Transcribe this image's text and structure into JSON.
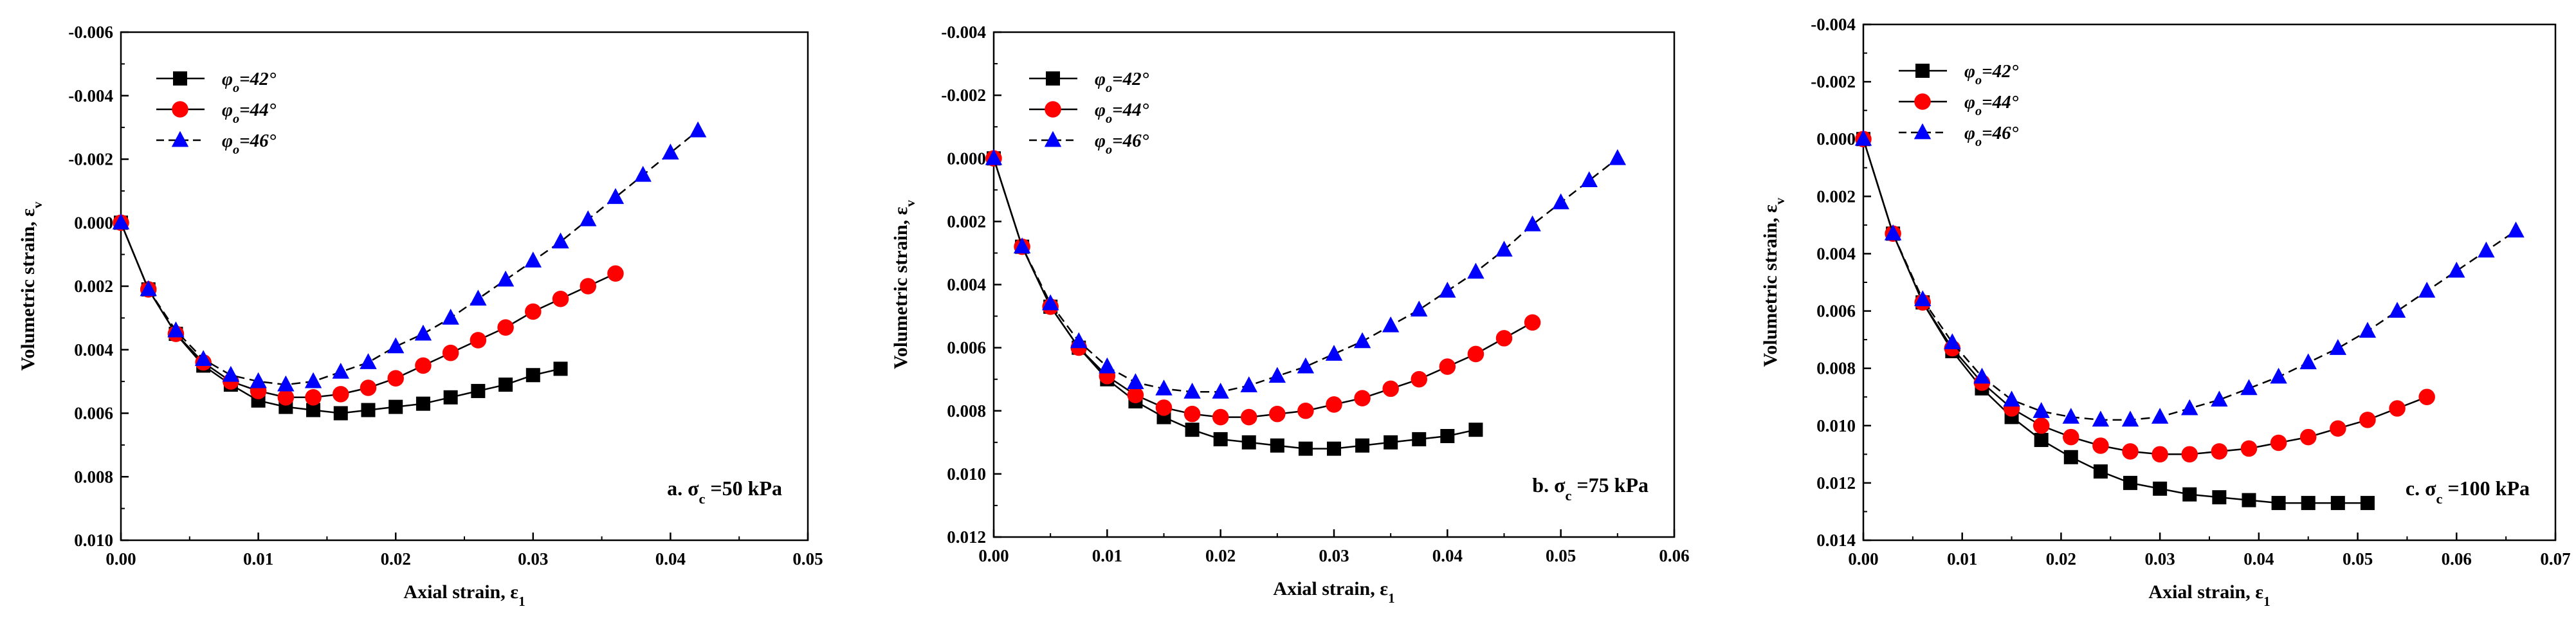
{
  "figure": {
    "colors": {
      "series1": "#000000",
      "series2": "#ff0000",
      "series3": "#0000ff",
      "axis": "#000000",
      "background": "#ffffff"
    },
    "legend_position": "top-left",
    "panel_label_position": "bottom-right"
  },
  "chart_data": [
    {
      "type": "line",
      "panel_label": "a. σc =50 kPa",
      "xlabel": "Axial strain, ε1",
      "ylabel": "Volumetric strain, εv",
      "y_inverted": true,
      "xlim": [
        0,
        0.05
      ],
      "ylim": [
        -0.006,
        0.01
      ],
      "xticks": [
        0.0,
        0.01,
        0.02,
        0.03,
        0.04,
        0.05
      ],
      "xtick_labels": [
        "0.00",
        "0.01",
        "0.02",
        "0.03",
        "0.04",
        "0.05"
      ],
      "yticks": [
        -0.006,
        -0.004,
        -0.002,
        0.0,
        0.002,
        0.004,
        0.006,
        0.008,
        0.01
      ],
      "ytick_labels": [
        "-0.006",
        "-0.004",
        "-0.002",
        "0.000",
        "0.002",
        "0.004",
        "0.006",
        "0.008",
        "0.010"
      ],
      "series": [
        {
          "name": "φ0=42°",
          "marker": "square",
          "color": "#000000",
          "dash": "solid",
          "x": [
            0.0,
            0.002,
            0.004,
            0.006,
            0.008,
            0.01,
            0.012,
            0.014,
            0.016,
            0.018,
            0.02,
            0.022,
            0.024,
            0.026,
            0.028,
            0.03,
            0.032
          ],
          "y": [
            0.0,
            0.0021,
            0.0035,
            0.0045,
            0.0051,
            0.0056,
            0.0058,
            0.0059,
            0.006,
            0.0059,
            0.0058,
            0.0057,
            0.0055,
            0.0053,
            0.0051,
            0.0048,
            0.0046
          ]
        },
        {
          "name": "φ0=44°",
          "marker": "circle",
          "color": "#ff0000",
          "dash": "solid",
          "x": [
            0.0,
            0.002,
            0.004,
            0.006,
            0.008,
            0.01,
            0.012,
            0.014,
            0.016,
            0.018,
            0.02,
            0.022,
            0.024,
            0.026,
            0.028,
            0.03,
            0.032,
            0.034,
            0.036
          ],
          "y": [
            0.0,
            0.0021,
            0.0035,
            0.0044,
            0.005,
            0.0053,
            0.0055,
            0.0055,
            0.0054,
            0.0052,
            0.0049,
            0.0045,
            0.0041,
            0.0037,
            0.0033,
            0.0028,
            0.0024,
            0.002,
            0.0016
          ]
        },
        {
          "name": "φ0=46°",
          "marker": "triangle",
          "color": "#0000ff",
          "dash": "dashed",
          "x": [
            0.0,
            0.002,
            0.004,
            0.006,
            0.008,
            0.01,
            0.012,
            0.014,
            0.016,
            0.018,
            0.02,
            0.022,
            0.024,
            0.026,
            0.028,
            0.03,
            0.032,
            0.034,
            0.036,
            0.038,
            0.04,
            0.042
          ],
          "y": [
            0.0,
            0.0021,
            0.0034,
            0.0043,
            0.0048,
            0.005,
            0.0051,
            0.005,
            0.0047,
            0.0044,
            0.0039,
            0.0035,
            0.003,
            0.0024,
            0.0018,
            0.0012,
            0.0006,
            -0.0001,
            -0.0008,
            -0.0015,
            -0.0022,
            -0.0029
          ]
        }
      ]
    },
    {
      "type": "line",
      "panel_label": "b. σc =75 kPa",
      "xlabel": "Axial strain, ε1",
      "ylabel": "Volumetric strain, εv",
      "y_inverted": true,
      "xlim": [
        0,
        0.06
      ],
      "ylim": [
        -0.004,
        0.012
      ],
      "xticks": [
        0.0,
        0.01,
        0.02,
        0.03,
        0.04,
        0.05,
        0.06
      ],
      "xtick_labels": [
        "0.00",
        "0.01",
        "0.02",
        "0.03",
        "0.04",
        "0.05",
        "0.06"
      ],
      "yticks": [
        -0.004,
        -0.002,
        0.0,
        0.002,
        0.004,
        0.006,
        0.008,
        0.01,
        0.012
      ],
      "ytick_labels": [
        "-0.004",
        "-0.002",
        "0.000",
        "0.002",
        "0.004",
        "0.006",
        "0.008",
        "0.010",
        "0.012"
      ],
      "series": [
        {
          "name": "φ0=42°",
          "marker": "square",
          "color": "#000000",
          "dash": "solid",
          "x": [
            0.0,
            0.0025,
            0.005,
            0.0075,
            0.01,
            0.0125,
            0.015,
            0.0175,
            0.02,
            0.0225,
            0.025,
            0.0275,
            0.03,
            0.0325,
            0.035,
            0.0375,
            0.04,
            0.0425
          ],
          "y": [
            0.0,
            0.0028,
            0.0047,
            0.006,
            0.007,
            0.0077,
            0.0082,
            0.0086,
            0.0089,
            0.009,
            0.0091,
            0.0092,
            0.0092,
            0.0091,
            0.009,
            0.0089,
            0.0088,
            0.0086
          ]
        },
        {
          "name": "φ0=44°",
          "marker": "circle",
          "color": "#ff0000",
          "dash": "solid",
          "x": [
            0.0,
            0.0025,
            0.005,
            0.0075,
            0.01,
            0.0125,
            0.015,
            0.0175,
            0.02,
            0.0225,
            0.025,
            0.0275,
            0.03,
            0.0325,
            0.035,
            0.0375,
            0.04,
            0.0425,
            0.045,
            0.0475
          ],
          "y": [
            0.0,
            0.0028,
            0.0047,
            0.006,
            0.0069,
            0.0075,
            0.0079,
            0.0081,
            0.0082,
            0.0082,
            0.0081,
            0.008,
            0.0078,
            0.0076,
            0.0073,
            0.007,
            0.0066,
            0.0062,
            0.0057,
            0.0052
          ]
        },
        {
          "name": "φ0=46°",
          "marker": "triangle",
          "color": "#0000ff",
          "dash": "dashed",
          "x": [
            0.0,
            0.0025,
            0.005,
            0.0075,
            0.01,
            0.0125,
            0.015,
            0.0175,
            0.02,
            0.0225,
            0.025,
            0.0275,
            0.03,
            0.0325,
            0.035,
            0.0375,
            0.04,
            0.0425,
            0.045,
            0.0475,
            0.05,
            0.0525,
            0.055
          ],
          "y": [
            0.0,
            0.0028,
            0.0046,
            0.0058,
            0.0066,
            0.0071,
            0.0073,
            0.0074,
            0.0074,
            0.0072,
            0.0069,
            0.0066,
            0.0062,
            0.0058,
            0.0053,
            0.0048,
            0.0042,
            0.0036,
            0.0029,
            0.0021,
            0.0014,
            0.0007,
            0.0
          ]
        }
      ]
    },
    {
      "type": "line",
      "panel_label": "c. σc =100 kPa",
      "xlabel": "Axial strain, ε1",
      "ylabel": "Volumetric strain, εv",
      "y_inverted": true,
      "xlim": [
        0,
        0.07
      ],
      "ylim": [
        -0.004,
        0.014
      ],
      "xticks": [
        0.0,
        0.01,
        0.02,
        0.03,
        0.04,
        0.05,
        0.06,
        0.07
      ],
      "xtick_labels": [
        "0.00",
        "0.01",
        "0.02",
        "0.03",
        "0.04",
        "0.05",
        "0.06",
        "0.07"
      ],
      "yticks": [
        -0.004,
        -0.002,
        0.0,
        0.002,
        0.004,
        0.006,
        0.008,
        0.01,
        0.012,
        0.014
      ],
      "ytick_labels": [
        "-0.004",
        "-0.002",
        "0.000",
        "0.002",
        "0.004",
        "0.006",
        "0.008",
        "0.010",
        "0.012",
        "0.014"
      ],
      "series": [
        {
          "name": "φ0=42°",
          "marker": "square",
          "color": "#000000",
          "dash": "solid",
          "x": [
            0.0,
            0.003,
            0.006,
            0.009,
            0.012,
            0.015,
            0.018,
            0.021,
            0.024,
            0.027,
            0.03,
            0.033,
            0.036,
            0.039,
            0.042,
            0.045,
            0.048,
            0.051
          ],
          "y": [
            0.0,
            0.0033,
            0.0057,
            0.0074,
            0.0087,
            0.0097,
            0.0105,
            0.0111,
            0.0116,
            0.012,
            0.0122,
            0.0124,
            0.0125,
            0.0126,
            0.0127,
            0.0127,
            0.0127,
            0.0127
          ]
        },
        {
          "name": "φ0=44°",
          "marker": "circle",
          "color": "#ff0000",
          "dash": "solid",
          "x": [
            0.0,
            0.003,
            0.006,
            0.009,
            0.012,
            0.015,
            0.018,
            0.021,
            0.024,
            0.027,
            0.03,
            0.033,
            0.036,
            0.039,
            0.042,
            0.045,
            0.048,
            0.051,
            0.054,
            0.057
          ],
          "y": [
            0.0,
            0.0033,
            0.0057,
            0.0073,
            0.0085,
            0.0094,
            0.01,
            0.0104,
            0.0107,
            0.0109,
            0.011,
            0.011,
            0.0109,
            0.0108,
            0.0106,
            0.0104,
            0.0101,
            0.0098,
            0.0094,
            0.009
          ]
        },
        {
          "name": "φ0=46°",
          "marker": "triangle",
          "color": "#0000ff",
          "dash": "dashed",
          "x": [
            0.0,
            0.003,
            0.006,
            0.009,
            0.012,
            0.015,
            0.018,
            0.021,
            0.024,
            0.027,
            0.03,
            0.033,
            0.036,
            0.039,
            0.042,
            0.045,
            0.048,
            0.051,
            0.054,
            0.057,
            0.06,
            0.063,
            0.066
          ],
          "y": [
            0.0,
            0.0033,
            0.0056,
            0.0071,
            0.0083,
            0.0091,
            0.0095,
            0.0097,
            0.0098,
            0.0098,
            0.0097,
            0.0094,
            0.0091,
            0.0087,
            0.0083,
            0.0078,
            0.0073,
            0.0067,
            0.006,
            0.0053,
            0.0046,
            0.0039,
            0.0032
          ]
        }
      ]
    }
  ]
}
